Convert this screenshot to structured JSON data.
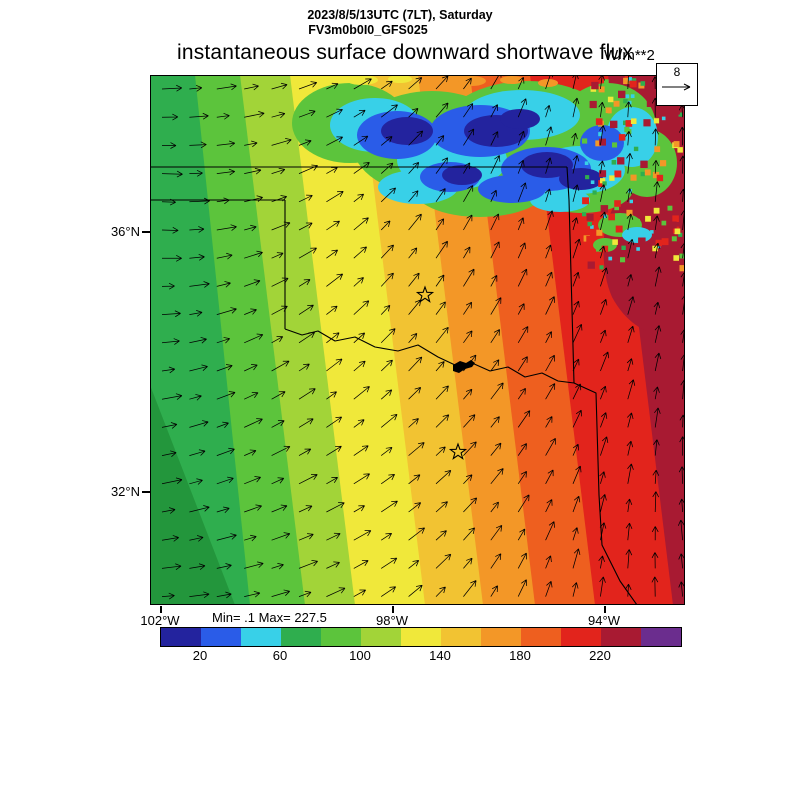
{
  "header": {
    "line1": "2023/8/5/13UTC (7LT), Saturday",
    "line2": "FV3m0b0I0_GFS025",
    "title": "instantaneous surface downward shortwave flux",
    "units": "W/m**2"
  },
  "reference_vector": {
    "label": "8"
  },
  "axes": {
    "lat_labels": [
      "36°N",
      "32°N"
    ],
    "lon_labels": [
      "102°W",
      "98°W",
      "94°W"
    ]
  },
  "stats_text": "Min= .1 Max= 227.5",
  "colorbar": {
    "tick_labels": [
      "20",
      "60",
      "100",
      "140",
      "180",
      "220"
    ],
    "segment_colors": [
      "#23239e",
      "#2a5ce8",
      "#38d0e8",
      "#2fae4e",
      "#5cc43c",
      "#a2d438",
      "#f0e83a",
      "#f2c332",
      "#f39727",
      "#ee5f1f",
      "#e2241c",
      "#a81a32",
      "#6b2d8e"
    ]
  },
  "map_colors": {
    "deep_green": "#23963c",
    "border": "#000000",
    "lake": "#000000"
  },
  "chart_data": {
    "type": "heatmap",
    "title": "instantaneous surface downward shortwave flux",
    "units": "W/m**2",
    "valid_time": "2023/8/5/13UTC (7LT), Saturday",
    "model": "FV3m0b0I0_GFS025",
    "min": 0.1,
    "max": 227.5,
    "levels": [
      20,
      40,
      60,
      80,
      100,
      120,
      140,
      160,
      180,
      200,
      220,
      240
    ],
    "colorbar_tick_labels": [
      20,
      60,
      100,
      140,
      180,
      220
    ],
    "colorbar_colors": [
      "#23239e",
      "#2a5ce8",
      "#38d0e8",
      "#2fae4e",
      "#5cc43c",
      "#a2d438",
      "#f0e83a",
      "#f2c332",
      "#f39727",
      "#ee5f1f",
      "#e2241c",
      "#a81a32",
      "#6b2d8e"
    ],
    "y_axis_ticks": [
      "36°N",
      "32°N"
    ],
    "x_axis_ticks": [
      "102°W",
      "98°W",
      "94°W"
    ],
    "wind_reference_vector": 8,
    "legend_position": "bottom",
    "grid": false,
    "features": {
      "flux_bands": "diagonal bands increase eastward from ~70 W/m**2 (green, NW) to ~230 W/m**2 (dark red, E)",
      "cloud_region": "mottled blue/cyan/green low-flux area (<60 W/m**2) across northern part of domain",
      "markers": "two open star markers and a black lake shape on the Red River; Texas/Oklahoma state borders drawn",
      "vectors": "wind arrows rotate from eastward-pointing in the west to northward-pointing in the east"
    }
  }
}
